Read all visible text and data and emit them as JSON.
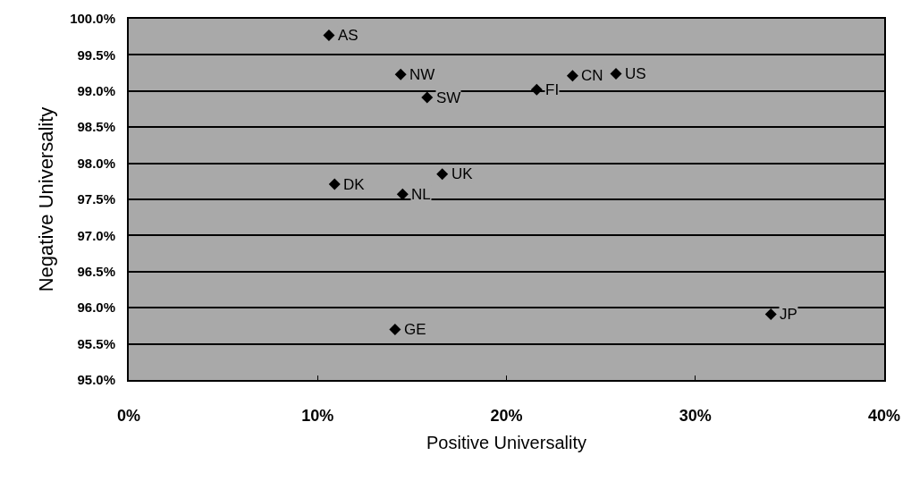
{
  "chart_data": {
    "type": "scatter",
    "xlabel": "Positive Universality",
    "ylabel": "Negative Universality",
    "x": [
      10.6,
      14.4,
      15.8,
      10.9,
      14.5,
      14.1,
      16.6,
      21.6,
      23.5,
      25.8,
      34.0
    ],
    "series": [
      {
        "color": "#000000",
        "values": [
          99.77,
          99.23,
          98.91,
          97.71,
          97.57,
          95.7,
          97.85,
          99.02,
          99.21,
          99.24,
          95.91
        ]
      }
    ],
    "annotations": [
      {
        "text": "AS",
        "x": 10.6,
        "y": 99.77
      },
      {
        "text": "NW",
        "x": 14.4,
        "y": 99.23
      },
      {
        "text": "SW",
        "x": 15.8,
        "y": 98.91
      },
      {
        "text": "DK",
        "x": 10.9,
        "y": 97.71
      },
      {
        "text": "NL",
        "x": 14.5,
        "y": 97.57
      },
      {
        "text": "GE",
        "x": 14.1,
        "y": 95.7
      },
      {
        "text": "UK",
        "x": 16.6,
        "y": 97.85
      },
      {
        "text": "FI",
        "x": 21.6,
        "y": 99.02
      },
      {
        "text": "CN",
        "x": 23.5,
        "y": 99.21
      },
      {
        "text": "US",
        "x": 25.8,
        "y": 99.24
      },
      {
        "text": "JP",
        "x": 34.0,
        "y": 95.91
      }
    ],
    "xlim": [
      0,
      40
    ],
    "xticks": [
      {
        "value": 0,
        "label": "0%"
      },
      {
        "value": 10,
        "label": "10%"
      },
      {
        "value": 20,
        "label": "20%"
      },
      {
        "value": 30,
        "label": "30%"
      },
      {
        "value": 40,
        "label": "40%"
      }
    ],
    "ylim": [
      95,
      100
    ],
    "yticks": [
      {
        "value": 95,
        "label": "95.0%"
      },
      {
        "value": 95.5,
        "label": "95.5%"
      },
      {
        "value": 96,
        "label": "96.0%"
      },
      {
        "value": 96.5,
        "label": "96.5%"
      },
      {
        "value": 97,
        "label": "97.0%"
      },
      {
        "value": 97.5,
        "label": "97.5%"
      },
      {
        "value": 98,
        "label": "98.0%"
      },
      {
        "value": 98.5,
        "label": "98.5%"
      },
      {
        "value": 99,
        "label": "99.0%"
      },
      {
        "value": 99.5,
        "label": "99.5%"
      },
      {
        "value": 100,
        "label": "100.0%"
      }
    ],
    "grid": "y",
    "marker": "diamond"
  }
}
